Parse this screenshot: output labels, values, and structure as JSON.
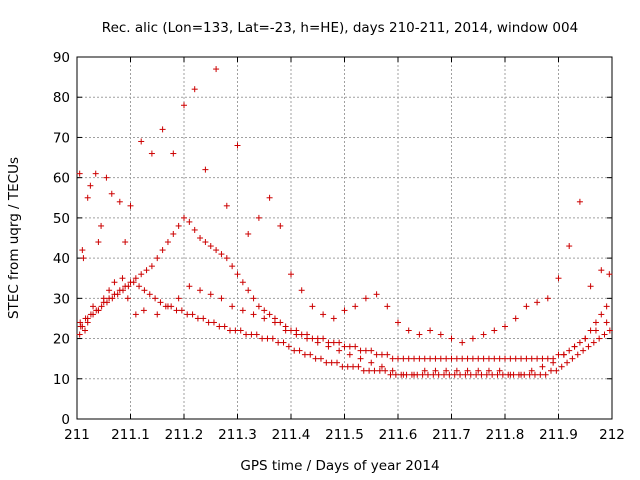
{
  "chart_data": {
    "type": "scatter",
    "title": "Rec. alic (Lon=133, Lat=-23, h=HE), days 210-211, 2014, window 004",
    "xlabel": "GPS time / Days of year 2014",
    "ylabel": "STEC from uqrg / TECUs",
    "xlim": [
      211,
      212
    ],
    "ylim": [
      0,
      90
    ],
    "x_ticks": [
      "211",
      "211.1",
      "211.2",
      "211.3",
      "211.4",
      "211.5",
      "211.6",
      "211.7",
      "211.8",
      "211.9",
      "212"
    ],
    "y_ticks": [
      "0",
      "10",
      "20",
      "30",
      "40",
      "50",
      "60",
      "70",
      "80",
      "90"
    ],
    "grid": true,
    "marker": "+",
    "color": "#cc0000",
    "series": [
      {
        "x": [
          211.005,
          211.007,
          211.01,
          211.012,
          211.015,
          211.02,
          211.02,
          211.025,
          211.03,
          211.035,
          211.04,
          211.04,
          211.045,
          211.05,
          211.055,
          211.06,
          211.065,
          211.07,
          211.08,
          211.085,
          211.09,
          211.095,
          211.1,
          211.11,
          211.12,
          211.125,
          211.14,
          211.15,
          211.16,
          211.17,
          211.18,
          211.19,
          211.2,
          211.21,
          211.22,
          211.23,
          211.24,
          211.25,
          211.26,
          211.27,
          211.28,
          211.29,
          211.3,
          211.31,
          211.32,
          211.33,
          211.34,
          211.35,
          211.36,
          211.37,
          211.38,
          211.39,
          211.4,
          211.41,
          211.42,
          211.43,
          211.44,
          211.45,
          211.46,
          211.47,
          211.48,
          211.49,
          211.5,
          211.51,
          211.52,
          211.53,
          211.54,
          211.55,
          211.56,
          211.57,
          211.58,
          211.59,
          211.6,
          211.61,
          211.62,
          211.63,
          211.64,
          211.65,
          211.66,
          211.67,
          211.68,
          211.69,
          211.7,
          211.71,
          211.72,
          211.73,
          211.74,
          211.75,
          211.76,
          211.77,
          211.78,
          211.79,
          211.8,
          211.81,
          211.82,
          211.83,
          211.84,
          211.85,
          211.86,
          211.87,
          211.88,
          211.89,
          211.9,
          211.91,
          211.92,
          211.93,
          211.94,
          211.95,
          211.96,
          211.97,
          211.98,
          211.99,
          211.995
        ],
        "y": [
          61,
          23,
          42,
          40,
          22,
          55,
          25,
          58,
          28,
          61,
          44,
          27,
          48,
          30,
          60,
          32,
          56,
          34,
          54,
          35,
          44,
          30,
          53,
          26,
          69,
          27,
          66,
          26,
          72,
          28,
          66,
          30,
          78,
          33,
          82,
          32,
          62,
          31,
          87,
          30,
          53,
          28,
          68,
          27,
          46,
          26,
          50,
          25,
          55,
          24,
          48,
          22,
          36,
          21,
          32,
          20,
          28,
          19,
          26,
          18,
          25,
          17,
          27,
          16,
          28,
          15,
          30,
          14,
          31,
          13,
          28,
          12,
          24,
          11,
          22,
          11,
          21,
          12,
          22,
          12,
          21,
          12,
          20,
          12,
          19,
          12,
          20,
          12,
          21,
          12,
          22,
          12,
          23,
          11,
          25,
          11,
          28,
          12,
          29,
          13,
          30,
          14,
          35,
          16,
          43,
          18,
          54,
          20,
          33,
          22,
          37,
          24,
          36
        ]
      },
      {
        "x": [
          211.005,
          211.01,
          211.02,
          211.03,
          211.04,
          211.05,
          211.06,
          211.07,
          211.08,
          211.09,
          211.1,
          211.11,
          211.12,
          211.13,
          211.14,
          211.15,
          211.16,
          211.17,
          211.18,
          211.19,
          211.2,
          211.21,
          211.22,
          211.23,
          211.24,
          211.25,
          211.26,
          211.27,
          211.28,
          211.29,
          211.3,
          211.31,
          211.32,
          211.33,
          211.34,
          211.35,
          211.36,
          211.37,
          211.38,
          211.39,
          211.4,
          211.41,
          211.42,
          211.43,
          211.44,
          211.45,
          211.46,
          211.47,
          211.48,
          211.49,
          211.5,
          211.51,
          211.52,
          211.53,
          211.54,
          211.55,
          211.56,
          211.57,
          211.58,
          211.59,
          211.6,
          211.61,
          211.62,
          211.63,
          211.64,
          211.65,
          211.66,
          211.67,
          211.68,
          211.69,
          211.7,
          211.71,
          211.72,
          211.73,
          211.74,
          211.75,
          211.76,
          211.77,
          211.78,
          211.79,
          211.8,
          211.81,
          211.82,
          211.83,
          211.84,
          211.85,
          211.86,
          211.87,
          211.88,
          211.89,
          211.9,
          211.91,
          211.92,
          211.93,
          211.94,
          211.95,
          211.96,
          211.97,
          211.98,
          211.99
        ],
        "y": [
          21,
          23,
          24,
          26,
          27,
          29,
          30,
          31,
          32,
          33,
          34,
          35,
          36,
          37,
          38,
          40,
          42,
          44,
          46,
          48,
          50,
          49,
          47,
          45,
          44,
          43,
          42,
          41,
          40,
          38,
          36,
          34,
          32,
          30,
          28,
          27,
          26,
          25,
          24,
          23,
          22,
          22,
          21,
          21,
          20,
          20,
          20,
          19,
          19,
          19,
          18,
          18,
          18,
          17,
          17,
          17,
          16,
          16,
          16,
          15,
          15,
          15,
          15,
          15,
          15,
          15,
          15,
          15,
          15,
          15,
          15,
          15,
          15,
          15,
          15,
          15,
          15,
          15,
          15,
          15,
          15,
          15,
          15,
          15,
          15,
          15,
          15,
          15,
          15,
          15,
          16,
          16,
          17,
          18,
          19,
          20,
          22,
          24,
          26,
          28
        ]
      },
      {
        "x": [
          211.006,
          211.016,
          211.026,
          211.036,
          211.046,
          211.056,
          211.066,
          211.076,
          211.086,
          211.096,
          211.106,
          211.116,
          211.126,
          211.136,
          211.146,
          211.156,
          211.166,
          211.176,
          211.186,
          211.196,
          211.206,
          211.216,
          211.226,
          211.236,
          211.246,
          211.256,
          211.266,
          211.276,
          211.286,
          211.296,
          211.306,
          211.316,
          211.326,
          211.336,
          211.346,
          211.356,
          211.366,
          211.376,
          211.386,
          211.396,
          211.406,
          211.416,
          211.426,
          211.436,
          211.446,
          211.456,
          211.466,
          211.476,
          211.486,
          211.496,
          211.506,
          211.516,
          211.526,
          211.536,
          211.546,
          211.556,
          211.566,
          211.576,
          211.586,
          211.596,
          211.606,
          211.616,
          211.626,
          211.636,
          211.646,
          211.656,
          211.666,
          211.676,
          211.686,
          211.696,
          211.706,
          211.716,
          211.726,
          211.736,
          211.746,
          211.756,
          211.766,
          211.776,
          211.786,
          211.796,
          211.806,
          211.816,
          211.826,
          211.836,
          211.846,
          211.856,
          211.866,
          211.876,
          211.886,
          211.896,
          211.906,
          211.916,
          211.926,
          211.936,
          211.946,
          211.956,
          211.966,
          211.976,
          211.986,
          211.996
        ],
        "y": [
          24,
          25,
          26,
          27,
          28,
          29,
          30,
          31,
          32,
          33,
          34,
          33,
          32,
          31,
          30,
          29,
          28,
          28,
          27,
          27,
          26,
          26,
          25,
          25,
          24,
          24,
          23,
          23,
          22,
          22,
          22,
          21,
          21,
          21,
          20,
          20,
          20,
          19,
          19,
          18,
          17,
          17,
          16,
          16,
          15,
          15,
          14,
          14,
          14,
          13,
          13,
          13,
          13,
          12,
          12,
          12,
          12,
          12,
          11,
          11,
          11,
          11,
          11,
          11,
          11,
          11,
          11,
          11,
          11,
          11,
          11,
          11,
          11,
          11,
          11,
          11,
          11,
          11,
          11,
          11,
          11,
          11,
          11,
          11,
          11,
          11,
          11,
          11,
          12,
          12,
          13,
          14,
          15,
          16,
          17,
          18,
          19,
          20,
          21,
          22
        ]
      }
    ]
  }
}
